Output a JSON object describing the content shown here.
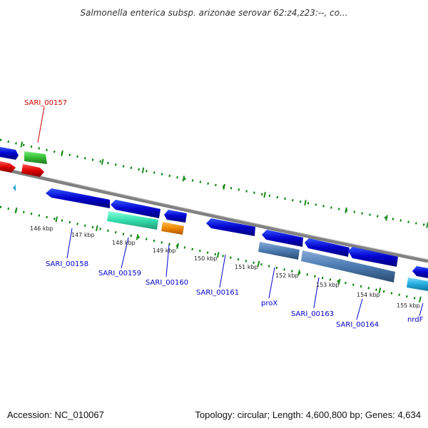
{
  "title": "Salmonella enterica subsp. arizonae serovar 62:z4,z23:--, co...",
  "footer": {
    "accession": "Accession: NC_010067",
    "summary": "Topology: circular; Length: 4,600,800 bp; Genes: 4,634"
  },
  "colors": {
    "backbone": "#808080",
    "label_highlight": "#cc0000",
    "label_default": "#0000cc",
    "tick": "#008000",
    "cds_blue": "#0000cc",
    "cds_red": "#dd0000",
    "cds_green": "#33bb33",
    "cds_teal": "#33ddaa",
    "cds_orange": "#ee8800",
    "cds_steel": "#4a7ab0",
    "cds_cyan": "#22aadd"
  },
  "labels": [
    {
      "text": "SARI_00157",
      "highlight": true
    },
    {
      "text": "SARI_00158",
      "highlight": false
    },
    {
      "text": "SARI_00159",
      "highlight": false
    },
    {
      "text": "SARI_00160",
      "highlight": false
    },
    {
      "text": "SARI_00161",
      "highlight": false
    },
    {
      "text": "proX",
      "highlight": false
    },
    {
      "text": "SARI_00163",
      "highlight": false
    },
    {
      "text": "SARI_00164",
      "highlight": false
    },
    {
      "text": "nrdF",
      "highlight": false
    }
  ],
  "kbp_ticks": [
    "146 kbp",
    "147 kbp",
    "148 kbp",
    "149 kbp",
    "150 kbp",
    "151 kbp",
    "152 kbp",
    "153 kbp",
    "154 kbp",
    "155 kbp"
  ]
}
